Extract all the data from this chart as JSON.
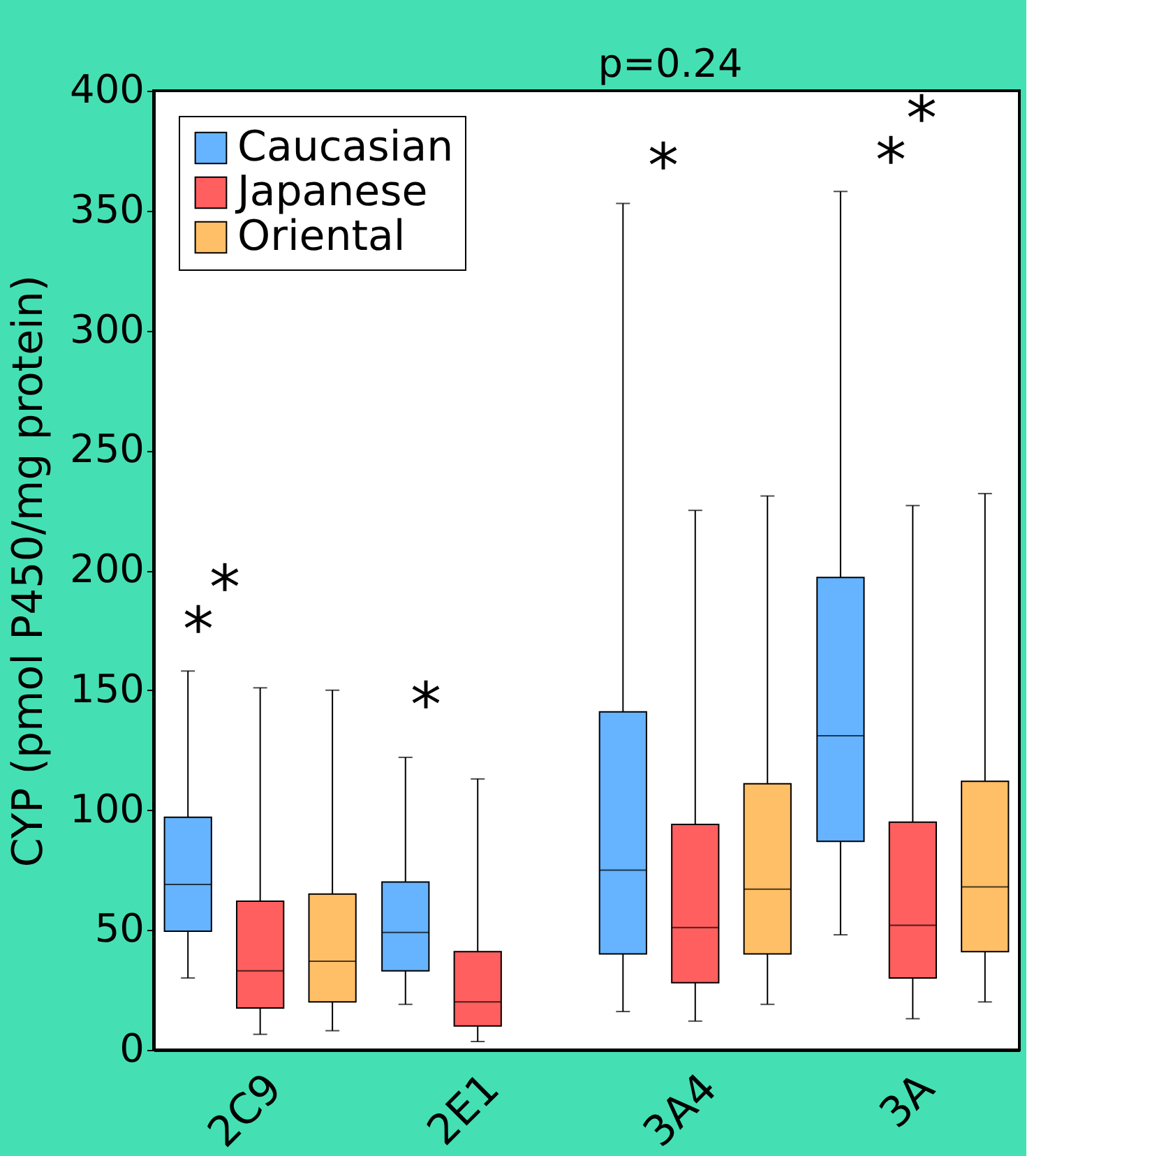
{
  "chart_data": {
    "type": "box",
    "ylabel": "CYP (pmol P450/mg protein)",
    "categories": [
      "2C9",
      "2E1",
      "3A4",
      "3A"
    ],
    "ylim": [
      0,
      400
    ],
    "yticks": [
      0,
      50,
      100,
      150,
      200,
      250,
      300,
      350,
      400
    ],
    "grid": false,
    "legend": "top left",
    "series": [
      {
        "name": "Caucasian",
        "color": "#66b3ff",
        "boxes": [
          {
            "low": 30,
            "q1": 49.5,
            "median": 69,
            "q3": 97,
            "high": 158
          },
          {
            "low": 19,
            "q1": 33,
            "median": 49,
            "q3": 70,
            "high": 122
          },
          {
            "low": 16,
            "q1": 40,
            "median": 75,
            "q3": 141,
            "high": 353
          },
          {
            "low": 48,
            "q1": 87,
            "median": 131,
            "q3": 197,
            "high": 358
          }
        ]
      },
      {
        "name": "Japanese",
        "color": "#ff5f5f",
        "boxes": [
          {
            "low": 6.5,
            "q1": 17.5,
            "median": 33,
            "q3": 62,
            "high": 151
          },
          {
            "low": 3.5,
            "q1": 10,
            "median": 20,
            "q3": 41,
            "high": 113
          },
          {
            "low": 12,
            "q1": 28,
            "median": 51,
            "q3": 94,
            "high": 225
          },
          {
            "low": 13,
            "q1": 30,
            "median": 52,
            "q3": 95,
            "high": 227
          }
        ]
      },
      {
        "name": "Oriental",
        "color": "#ffbf66",
        "boxes": [
          {
            "low": 8,
            "q1": 20,
            "median": 37,
            "q3": 65,
            "high": 150
          },
          null,
          {
            "low": 19,
            "q1": 40,
            "median": 67,
            "q3": 111,
            "high": 231
          },
          {
            "low": 20,
            "q1": 41,
            "median": 68,
            "q3": 112,
            "high": 232
          }
        ]
      }
    ],
    "annotations": [
      "*",
      "*",
      "*",
      "*",
      "p=0.24",
      "*",
      "*"
    ]
  }
}
